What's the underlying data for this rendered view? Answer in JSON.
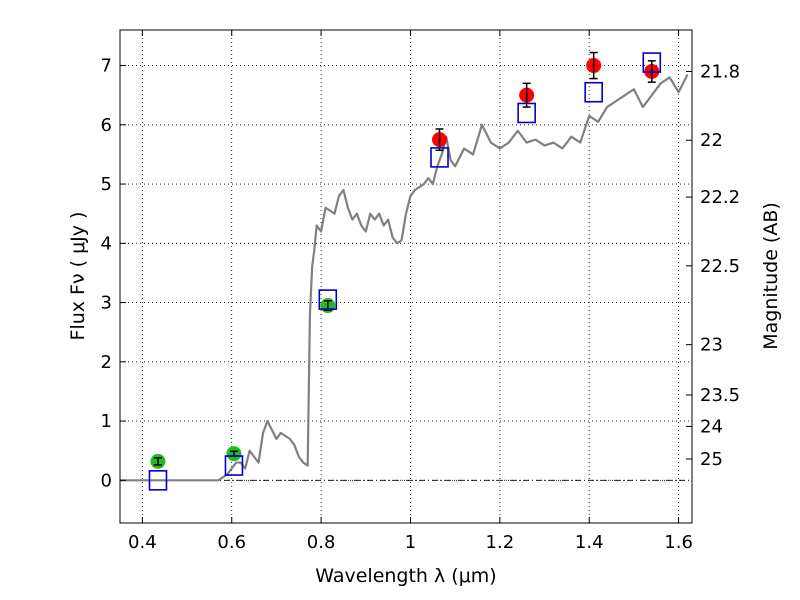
{
  "chart_data": {
    "type": "scatter",
    "xlabel": "Wavelength  λ (μm)",
    "ylabel": "Flux  Fν  ( μJy )",
    "y2label": "Magnitude (AB)",
    "xlim": [
      0.35,
      1.63
    ],
    "ylim": [
      -0.72,
      7.6
    ],
    "grid": true,
    "xticks": [
      0.4,
      0.6,
      0.8,
      1.0,
      1.2,
      1.4,
      1.6
    ],
    "xtick_labels": [
      "0.4",
      "0.6",
      "0.8",
      "1",
      "1.2",
      "1.4",
      "1.6"
    ],
    "yticks": [
      0,
      1,
      2,
      3,
      4,
      5,
      6,
      7
    ],
    "ytick_labels": [
      "0",
      "1",
      "2",
      "3",
      "4",
      "5",
      "6",
      "7"
    ],
    "y2ticks": [
      {
        "label": "21.8",
        "flux": 6.9
      },
      {
        "label": "22",
        "flux": 5.74
      },
      {
        "label": "22.2",
        "flux": 4.78
      },
      {
        "label": "22.5",
        "flux": 3.62
      },
      {
        "label": "23",
        "flux": 2.29
      },
      {
        "label": "23.5",
        "flux": 1.44
      },
      {
        "label": "24",
        "flux": 0.91
      },
      {
        "label": "25",
        "flux": 0.36
      }
    ],
    "series": [
      {
        "marker": "line",
        "color": "#808080",
        "x": [
          0.35,
          0.4,
          0.5,
          0.57,
          0.59,
          0.6,
          0.61,
          0.62,
          0.63,
          0.64,
          0.65,
          0.66,
          0.67,
          0.68,
          0.69,
          0.7,
          0.71,
          0.72,
          0.73,
          0.74,
          0.75,
          0.76,
          0.77,
          0.775,
          0.78,
          0.785,
          0.79,
          0.8,
          0.81,
          0.82,
          0.83,
          0.84,
          0.85,
          0.86,
          0.87,
          0.88,
          0.89,
          0.9,
          0.91,
          0.92,
          0.93,
          0.94,
          0.95,
          0.96,
          0.97,
          0.98,
          0.99,
          1.0,
          1.01,
          1.02,
          1.03,
          1.04,
          1.05,
          1.06,
          1.07,
          1.08,
          1.09,
          1.1,
          1.12,
          1.14,
          1.16,
          1.18,
          1.2,
          1.22,
          1.24,
          1.26,
          1.28,
          1.3,
          1.32,
          1.34,
          1.36,
          1.38,
          1.4,
          1.42,
          1.44,
          1.46,
          1.48,
          1.5,
          1.52,
          1.54,
          1.56,
          1.58,
          1.6,
          1.62
        ],
        "y": [
          0.0,
          0.0,
          0.0,
          0.0,
          0.1,
          0.2,
          0.3,
          0.3,
          0.2,
          0.5,
          0.4,
          0.3,
          0.8,
          1.0,
          0.85,
          0.7,
          0.8,
          0.75,
          0.7,
          0.6,
          0.4,
          0.3,
          0.25,
          2.8,
          3.6,
          3.9,
          4.3,
          4.2,
          4.6,
          4.55,
          4.5,
          4.8,
          4.9,
          4.6,
          4.4,
          4.5,
          4.3,
          4.2,
          4.5,
          4.4,
          4.5,
          4.3,
          4.4,
          4.1,
          4.0,
          4.05,
          4.5,
          4.8,
          4.9,
          4.95,
          5.0,
          5.1,
          5.0,
          5.3,
          5.5,
          5.8,
          5.4,
          5.3,
          5.6,
          5.5,
          6.0,
          5.7,
          5.6,
          5.7,
          5.9,
          5.7,
          5.75,
          5.65,
          5.7,
          5.6,
          5.8,
          5.7,
          6.15,
          6.05,
          6.3,
          6.4,
          6.5,
          6.6,
          6.3,
          6.5,
          6.7,
          6.8,
          6.55,
          6.85
        ]
      },
      {
        "marker": "circle",
        "color": "#ff0000",
        "x": [
          1.065,
          1.26,
          1.41,
          1.54
        ],
        "y": [
          5.75,
          6.5,
          7.0,
          6.9
        ],
        "err": [
          0.18,
          0.2,
          0.22,
          0.18
        ]
      },
      {
        "marker": "circle",
        "color": "#22bb22",
        "x": [
          0.435,
          0.605,
          0.815
        ],
        "y": [
          0.32,
          0.45,
          2.95
        ],
        "err": [
          0.06,
          0.04,
          0.08
        ]
      },
      {
        "marker": "square",
        "color": "#0000cc",
        "x": [
          0.435,
          0.605,
          0.815,
          1.065,
          1.26,
          1.41,
          1.54
        ],
        "y": [
          0.0,
          0.25,
          3.05,
          5.45,
          6.2,
          6.55,
          7.05
        ]
      }
    ]
  }
}
